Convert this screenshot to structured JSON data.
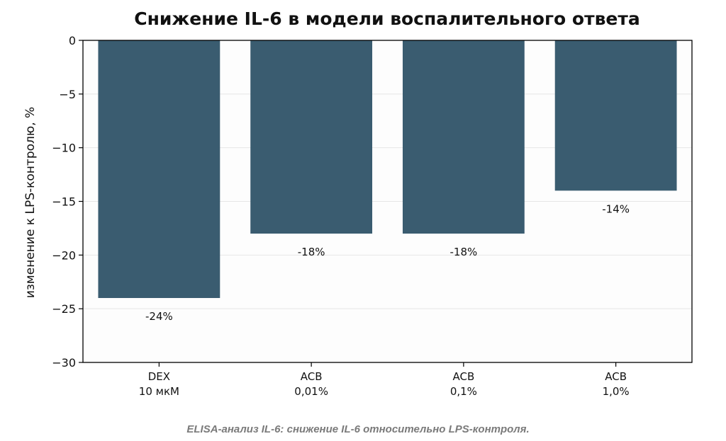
{
  "caption": "ELISA-анализ IL-6: снижение IL-6 относительно LPS-контроля.",
  "colors": {
    "bar": "#3a5c70",
    "grid": "#e6e6e6",
    "axis": "#000000"
  },
  "chart_data": {
    "type": "bar",
    "title": "Снижение IL-6 в модели воспалительного ответа",
    "xlabel": "",
    "ylabel": "изменение к LPS-контролю, %",
    "ylim": [
      -30,
      0
    ],
    "yticks": [
      0,
      -5,
      -10,
      -15,
      -20,
      -25,
      -30
    ],
    "ytick_labels": [
      "0",
      "−5",
      "−10",
      "−15",
      "−20",
      "−25",
      "−30"
    ],
    "grid": "horizontal",
    "legend": "none",
    "categories": [
      {
        "line1": "DEX",
        "line2": "10 мкМ"
      },
      {
        "line1": "ACB",
        "line2": "0,01%"
      },
      {
        "line1": "ACB",
        "line2": "0,1%"
      },
      {
        "line1": "ACB",
        "line2": "1,0%"
      }
    ],
    "values": [
      -24,
      -18,
      -18,
      -14
    ],
    "data_labels": [
      "-24%",
      "-18%",
      "-18%",
      "-14%"
    ]
  }
}
